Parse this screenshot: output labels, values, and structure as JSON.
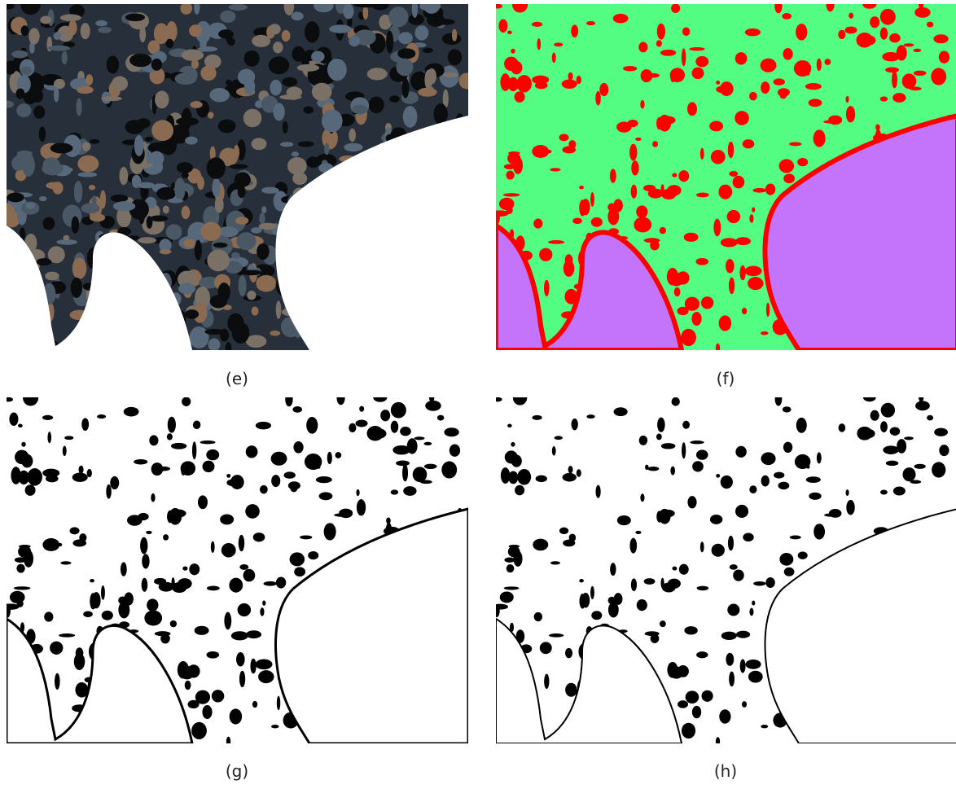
{
  "panels": [
    {
      "label": "(e)"
    },
    {
      "label": "(f)"
    },
    {
      "label": "(g)"
    },
    {
      "label": "(h)"
    }
  ]
}
